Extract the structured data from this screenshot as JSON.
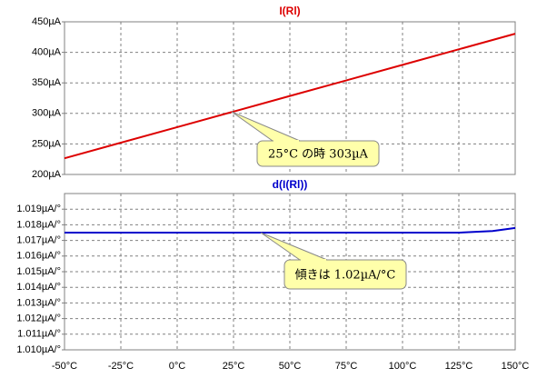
{
  "chart_data": [
    {
      "type": "line",
      "title": "I(Rl)",
      "title_color": "#dd0000",
      "x": [
        -50,
        0,
        25,
        50,
        100,
        150
      ],
      "series": [
        {
          "name": "I(Rl)",
          "color": "#dd0000",
          "values": [
            226.5,
            277.5,
            303,
            328.5,
            379.5,
            430.5
          ]
        }
      ],
      "xlim": [
        -50,
        150
      ],
      "xticks": [
        -50,
        -25,
        0,
        25,
        50,
        75,
        100,
        125,
        150
      ],
      "ylim": [
        200,
        450
      ],
      "yticks": [
        {
          "value": 200,
          "label": "200µA"
        },
        {
          "value": 250,
          "label": "250µA"
        },
        {
          "value": 300,
          "label": "300µA"
        },
        {
          "value": 350,
          "label": "350µA"
        },
        {
          "value": 400,
          "label": "400µA"
        },
        {
          "value": 450,
          "label": "450µA"
        }
      ],
      "grid": true,
      "annotation": "25°C の時 303µA"
    },
    {
      "type": "line",
      "title": "d(I(Rl))",
      "title_color": "#0000cc",
      "x": [
        -50,
        0,
        50,
        100,
        125,
        140,
        150
      ],
      "series": [
        {
          "name": "d(I(Rl))",
          "color": "#0000cc",
          "values": [
            1.0175,
            1.0175,
            1.0175,
            1.0175,
            1.0175,
            1.0176,
            1.0178
          ]
        }
      ],
      "xlim": [
        -50,
        150
      ],
      "xticks": [
        {
          "value": -50,
          "label": "-50°C"
        },
        {
          "value": -25,
          "label": "-25°C"
        },
        {
          "value": 0,
          "label": "0°C"
        },
        {
          "value": 25,
          "label": "25°C"
        },
        {
          "value": 50,
          "label": "50°C"
        },
        {
          "value": 75,
          "label": "75°C"
        },
        {
          "value": 100,
          "label": "100°C"
        },
        {
          "value": 125,
          "label": "125°C"
        },
        {
          "value": 150,
          "label": "150°C"
        }
      ],
      "ylim": [
        1.01,
        1.02
      ],
      "yticks": [
        {
          "value": 1.01,
          "label": "1.010µA/°"
        },
        {
          "value": 1.011,
          "label": "1.011µA/°"
        },
        {
          "value": 1.012,
          "label": "1.012µA/°"
        },
        {
          "value": 1.013,
          "label": "1.013µA/°"
        },
        {
          "value": 1.014,
          "label": "1.014µA/°"
        },
        {
          "value": 1.015,
          "label": "1.015µA/°"
        },
        {
          "value": 1.016,
          "label": "1.016µA/°"
        },
        {
          "value": 1.017,
          "label": "1.017µA/°"
        },
        {
          "value": 1.018,
          "label": "1.018µA/°"
        },
        {
          "value": 1.019,
          "label": "1.019µA/°"
        }
      ],
      "grid": true,
      "annotation": "傾きは 1.02µA/°C"
    }
  ]
}
